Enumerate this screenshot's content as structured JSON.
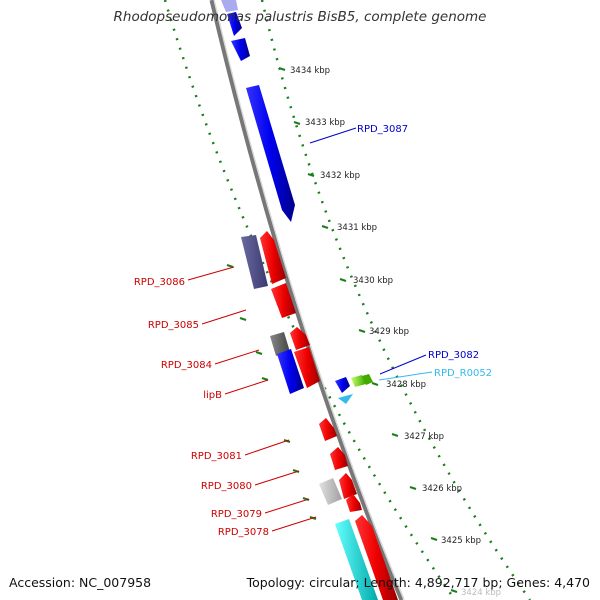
{
  "title": "Rhodopseudomonas palustris BisB5, complete genome",
  "footer": {
    "accession": "Accession: NC_007958",
    "summary": "Topology: circular; Length: 4,892,717 bp; Genes: 4,470"
  },
  "scale_ticks": [
    "3434 kbp",
    "3433 kbp",
    "3432 kbp",
    "3431 kbp",
    "3430 kbp",
    "3429 kbp",
    "3428 kbp",
    "3427 kbp",
    "3426 kbp",
    "3425 kbp",
    "3424 kbp"
  ],
  "gene_labels": [
    {
      "text": "RPD_3087",
      "color": "#0000cc"
    },
    {
      "text": "RPD_3086",
      "color": "#cc0000"
    },
    {
      "text": "RPD_3085",
      "color": "#cc0000"
    },
    {
      "text": "RPD_3084",
      "color": "#cc0000"
    },
    {
      "text": "lipB",
      "color": "#cc0000"
    },
    {
      "text": "RPD_3082",
      "color": "#0000cc"
    },
    {
      "text": "RPD_R0052",
      "color": "#33bbee"
    },
    {
      "text": "RPD_3081",
      "color": "#cc0000"
    },
    {
      "text": "RPD_3080",
      "color": "#cc0000"
    },
    {
      "text": "RPD_3079",
      "color": "#cc0000"
    },
    {
      "text": "RPD_3078",
      "color": "#cc0000"
    }
  ],
  "colors": {
    "forward_strand": "#0000ff",
    "reverse_strand": "#ff0000",
    "dotted_track": "#1a7f1a",
    "backbone": "#888888",
    "other_gene": "#555588",
    "rna": "#33bbee"
  }
}
